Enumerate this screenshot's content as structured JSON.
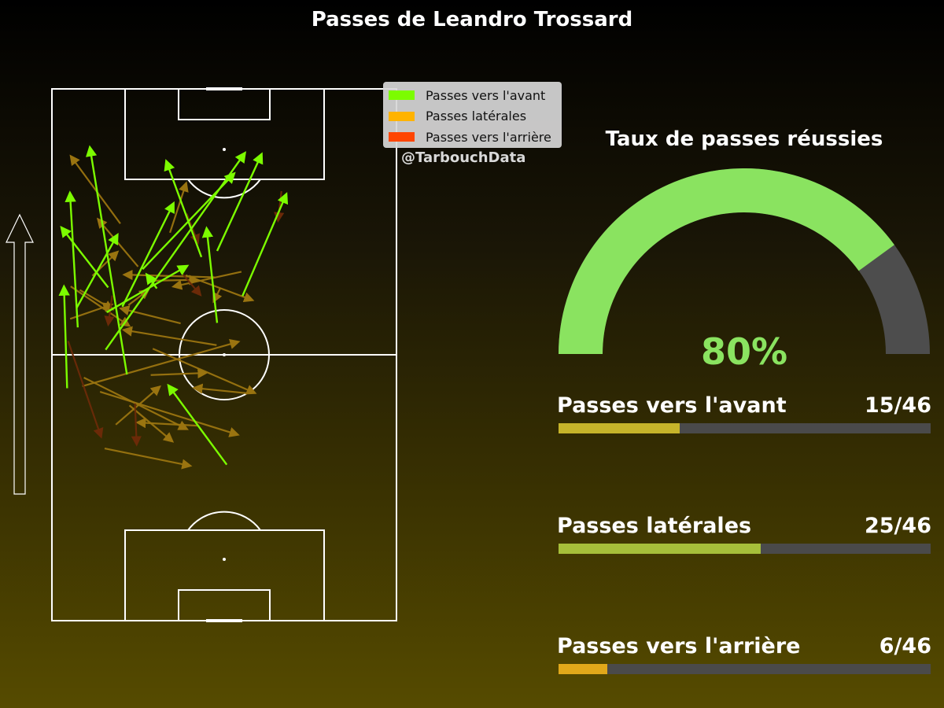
{
  "title": "Passes de Leandro Trossard",
  "watermark": "@TarbouchData",
  "legend": [
    {
      "label": "Passes vers l'avant",
      "color": "#7cfc00"
    },
    {
      "label": "Passes latérales",
      "color": "#ffb300"
    },
    {
      "label": "Passes vers l'arrière",
      "color": "#ff4500"
    }
  ],
  "gauge": {
    "title": "Taux de passes réussies",
    "value_label": "80%",
    "percent": 80,
    "fill_color": "#8ae360",
    "track_color": "#4d4d4d"
  },
  "stats": [
    {
      "label": "Passes vers l'avant",
      "count_label": "15/46",
      "count": 15,
      "total": 46,
      "color": "#c6b42a"
    },
    {
      "label": "Passes latérales",
      "count_label": "25/46",
      "count": 25,
      "total": 46,
      "color": "#a6bf3a"
    },
    {
      "label": "Passes vers l'arrière",
      "count_label": "6/46",
      "count": 6,
      "total": 46,
      "color": "#e1a81a"
    }
  ],
  "chart_data": {
    "type": "pass_map",
    "pitch_length_m": 105,
    "pitch_width_m": 68,
    "attack_direction": "up",
    "passes": {
      "forward": [
        [
          10.6,
          53.5,
          37.7,
          91.8
        ],
        [
          11.1,
          65.8,
          2.3,
          77.1
        ],
        [
          5.1,
          57.9,
          3.6,
          83.8
        ],
        [
          14.8,
          48.6,
          7.6,
          92.8
        ],
        [
          10.8,
          60.9,
          26.1,
          69.7
        ],
        [
          32.6,
          58.8,
          30.6,
          76.8
        ],
        [
          32.6,
          73.0,
          41.1,
          91.5
        ],
        [
          29.5,
          71.8,
          22.8,
          90.1
        ],
        [
          13.9,
          62.0,
          23.7,
          81.8
        ],
        [
          37.6,
          64.1,
          46.0,
          83.6
        ],
        [
          17.9,
          69.4,
          35.5,
          87.8
        ],
        [
          3.0,
          45.9,
          2.4,
          65.3
        ],
        [
          4.9,
          61.8,
          12.6,
          75.6
        ],
        [
          20.7,
          65.6,
          19.1,
          67.8
        ],
        [
          34.5,
          30.8,
          23.4,
          45.9
        ]
      ],
      "lateral": [
        [
          23.3,
          76.6,
          26.3,
          85.8
        ],
        [
          13.5,
          78.4,
          4.1,
          91.2
        ],
        [
          26.4,
          68.2,
          39.0,
          63.5
        ],
        [
          32.1,
          67.8,
          14.9,
          68.3
        ],
        [
          18.7,
          67.1,
          28.1,
          67.3
        ],
        [
          15.1,
          62.3,
          18.5,
          64.9
        ],
        [
          33.2,
          65.6,
          32.2,
          63.6
        ],
        [
          17.0,
          69.9,
          9.5,
          78.8
        ],
        [
          8.0,
          68.1,
          12.5,
          72.4
        ],
        [
          5.5,
          65.3,
          11.4,
          61.8
        ],
        [
          3.7,
          66.0,
          14.7,
          58.6
        ],
        [
          6.3,
          48.0,
          26.1,
          38.1
        ],
        [
          10.4,
          34.0,
          26.7,
          30.7
        ],
        [
          15.3,
          42.5,
          23.3,
          35.8
        ],
        [
          12.6,
          38.7,
          20.8,
          45.8
        ],
        [
          9.5,
          45.2,
          36.1,
          36.9
        ],
        [
          38.6,
          44.9,
          28.7,
          45.9
        ],
        [
          19.5,
          48.5,
          29.8,
          48.9
        ],
        [
          19.9,
          53.7,
          39.5,
          45.2
        ],
        [
          28.7,
          38.5,
          17.5,
          39.1
        ],
        [
          3.6,
          59.6,
          11.2,
          62.2
        ],
        [
          37.4,
          68.9,
          24.6,
          66.1
        ],
        [
          25.4,
          58.7,
          14.2,
          61.5
        ],
        [
          6.0,
          46.3,
          36.2,
          54.9
        ],
        [
          32.5,
          54.4,
          14.8,
          57.3
        ]
      ],
      "backward": [
        [
          45.3,
          84.8,
          44.7,
          79.6
        ],
        [
          25.4,
          68.9,
          28.9,
          64.8
        ],
        [
          11.9,
          64.2,
          11.2,
          59.1
        ],
        [
          16.4,
          42.9,
          16.7,
          35.4
        ],
        [
          3.2,
          55.2,
          9.5,
          36.9
        ],
        [
          26.6,
          80.4,
          28.6,
          75.2
        ]
      ]
    }
  }
}
